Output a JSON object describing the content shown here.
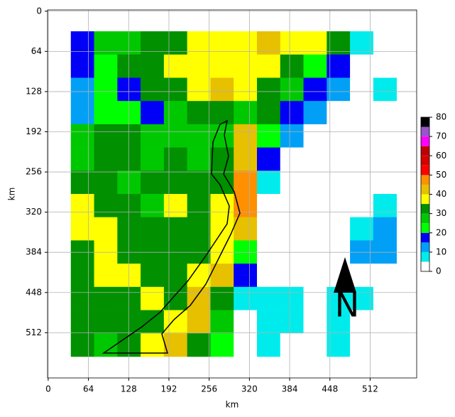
{
  "chart_data": {
    "type": "heatmap",
    "xlabel": "km",
    "ylabel": "km",
    "xlim": [
      -1,
      586
    ],
    "ylim": [
      584,
      -2
    ],
    "xticks": [
      0,
      64,
      128,
      192,
      256,
      320,
      384,
      448,
      512
    ],
    "yticks": [
      0,
      64,
      128,
      192,
      256,
      320,
      384,
      448,
      512
    ],
    "grid": true,
    "xbins": [
      36,
      73,
      110,
      147,
      184,
      221,
      258,
      295,
      332,
      369,
      406,
      443,
      480,
      517,
      554
    ],
    "ybins": [
      32,
      69,
      106,
      143,
      180,
      217,
      254,
      291,
      328,
      365,
      402,
      439,
      476,
      513,
      550
    ],
    "z": [
      [
        18,
        25,
        28,
        32,
        30,
        36,
        38,
        37,
        40,
        38,
        36,
        30,
        8,
        2
      ],
      [
        15,
        24,
        30,
        33,
        38,
        38,
        37,
        36,
        35,
        33,
        22,
        17,
        2,
        2
      ],
      [
        12,
        20,
        18,
        30,
        33,
        37,
        40,
        36,
        34,
        25,
        17,
        10,
        2,
        8
      ],
      [
        14,
        24,
        20,
        17,
        28,
        30,
        30,
        28,
        30,
        17,
        12,
        2,
        2,
        2
      ],
      [
        25,
        30,
        32,
        28,
        26,
        26,
        28,
        42,
        22,
        10,
        2,
        2,
        2,
        2
      ],
      [
        28,
        32,
        30,
        28,
        30,
        28,
        30,
        44,
        15,
        2,
        2,
        2,
        2,
        2
      ],
      [
        30,
        32,
        28,
        30,
        32,
        33,
        34,
        47,
        8,
        2,
        2,
        2,
        2,
        2
      ],
      [
        37,
        32,
        30,
        28,
        36,
        34,
        38,
        48,
        2,
        2,
        2,
        2,
        2,
        8
      ],
      [
        37,
        38,
        32,
        30,
        33,
        34,
        36,
        40,
        2,
        2,
        2,
        2,
        8,
        10
      ],
      [
        32,
        37,
        33,
        30,
        30,
        32,
        38,
        20,
        2,
        2,
        2,
        2,
        10,
        10
      ],
      [
        30,
        37,
        38,
        33,
        30,
        36,
        44,
        15,
        2,
        2,
        2,
        2,
        2,
        2
      ],
      [
        30,
        32,
        33,
        37,
        32,
        40,
        30,
        8,
        8,
        8,
        2,
        8,
        8,
        2
      ],
      [
        30,
        30,
        32,
        34,
        38,
        42,
        25,
        2,
        8,
        8,
        2,
        8,
        2,
        2
      ],
      [
        30,
        28,
        30,
        38,
        42,
        30,
        20,
        2,
        8,
        2,
        2,
        8,
        2,
        2
      ]
    ],
    "colorbar": {
      "levels": [
        0,
        5,
        10,
        15,
        20,
        25,
        30,
        35,
        40,
        45,
        50,
        55,
        60,
        65,
        70,
        75,
        80
      ],
      "colors": [
        "#ffffff",
        "#00ecec",
        "#01a0f6",
        "#0000f6",
        "#00ff00",
        "#00c800",
        "#009000",
        "#ffff00",
        "#e7c000",
        "#ff9000",
        "#ff0000",
        "#d60000",
        "#c00000",
        "#ff00ff",
        "#9955c9",
        "#000000"
      ],
      "ticks": [
        0,
        10,
        20,
        30,
        40,
        50,
        60,
        70,
        80
      ]
    },
    "annotation": "N"
  }
}
